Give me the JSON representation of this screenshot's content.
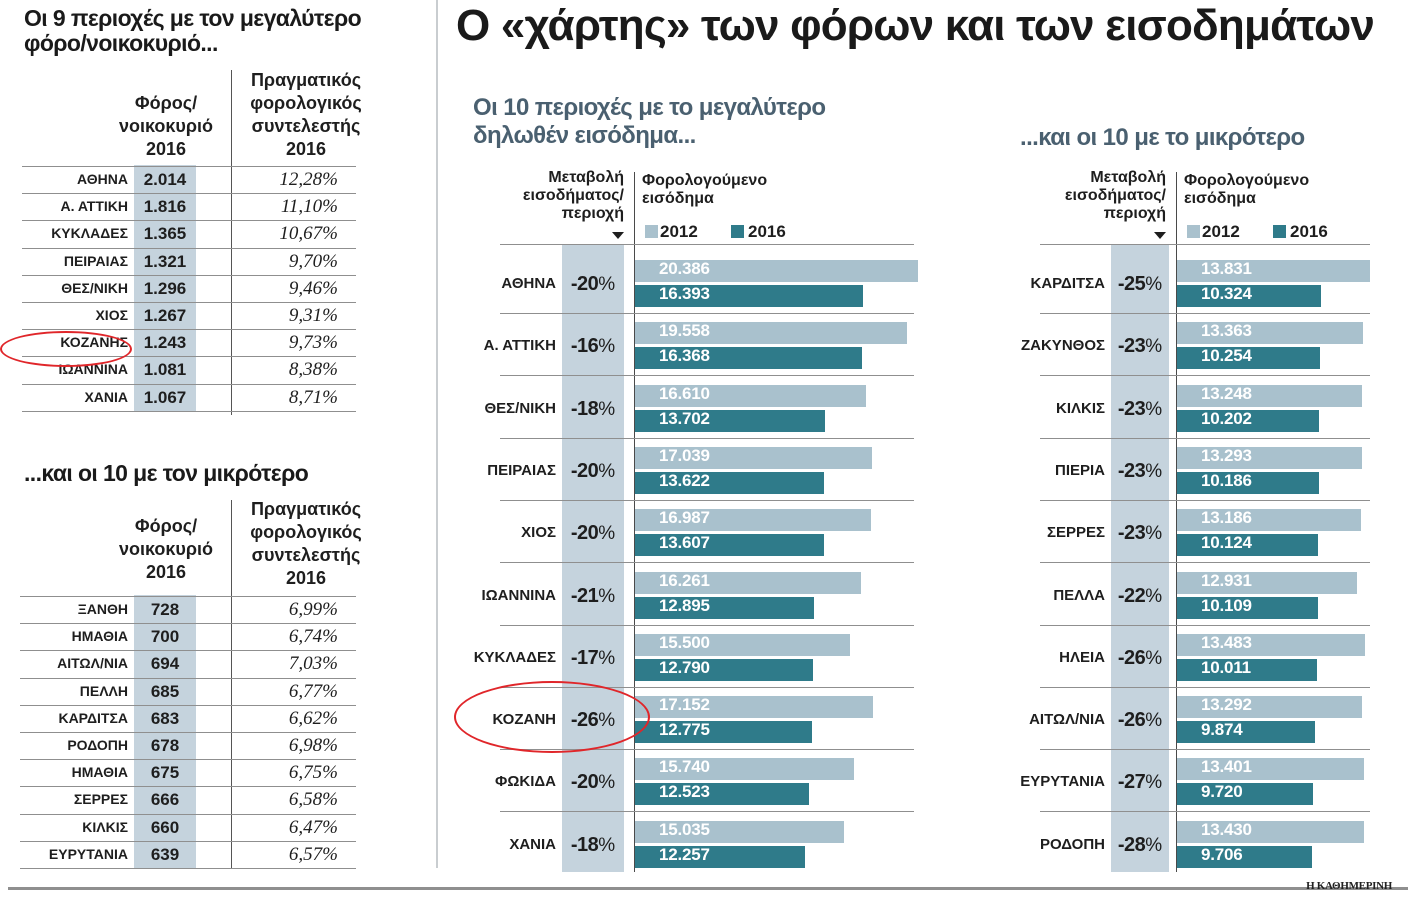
{
  "main_title": "Ο «χάρτης» των φόρων και των εισοδημάτων",
  "credit": "Η ΚΑΘΗΜΕΡΙΝΗ",
  "colors": {
    "bar_2012": "#a9c1cd",
    "bar_2016": "#2f7b8a",
    "shade": "#c5d3dd",
    "highlight": "#e0262a"
  },
  "left_top": {
    "title": "Οι 9 περιοχές με τον μεγαλύτερο φόρο/νοικοκυριό...",
    "title_line1": "Οι 9 περιοχές  με τον μεγαλύτερο",
    "title_line2": "φόρο/νοικοκυριό...",
    "col1_header": [
      "Φόρος/",
      "νοικοκυριό",
      "2016"
    ],
    "col2_header": [
      "Πραγματικός",
      "φορολογικός",
      "συντελεστής",
      "2016"
    ],
    "rows": [
      {
        "name": "ΑΘΗΝΑ",
        "tax": "2.014",
        "rate": "12,28%"
      },
      {
        "name": "Α. ΑΤΤΙΚΗ",
        "tax": "1.816",
        "rate": "11,10%"
      },
      {
        "name": "ΚΥΚΛΑΔΕΣ",
        "tax": "1.365",
        "rate": "10,67%"
      },
      {
        "name": "ΠΕΙΡΑΙΑΣ",
        "tax": "1.321",
        "rate": "9,70%"
      },
      {
        "name": "ΘΕΣ/ΝΙΚΗ",
        "tax": "1.296",
        "rate": "9,46%"
      },
      {
        "name": "ΧΙΟΣ",
        "tax": "1.267",
        "rate": "9,31%"
      },
      {
        "name": "ΚΟΖΑΝΗΣ",
        "tax": "1.243",
        "rate": "9,73%"
      },
      {
        "name": "ΙΩΑΝΝΙΝΑ",
        "tax": "1.081",
        "rate": "8,38%"
      },
      {
        "name": "ΧΑΝΙΑ",
        "tax": "1.067",
        "rate": "8,71%"
      }
    ]
  },
  "left_bottom": {
    "title": "...και οι 10 με τον μικρότερο",
    "col1_header": [
      "Φόρος/",
      "νοικοκυριό",
      "2016"
    ],
    "col2_header": [
      "Πραγματικός",
      "φορολογικός",
      "συντελεστής",
      "2016"
    ],
    "rows": [
      {
        "name": "ΞΑΝΘΗ",
        "tax": "728",
        "rate": "6,99%"
      },
      {
        "name": "ΗΜΑΘΙΑ",
        "tax": "700",
        "rate": "6,74%"
      },
      {
        "name": "ΑΙΤΩΛ/ΝΙΑ",
        "tax": "694",
        "rate": "7,03%"
      },
      {
        "name": "ΠΕΛΛΗ",
        "tax": "685",
        "rate": "6,77%"
      },
      {
        "name": "ΚΑΡΔΙΤΣΑ",
        "tax": "683",
        "rate": "6,62%"
      },
      {
        "name": "ΡΟΔΟΠΗ",
        "tax": "678",
        "rate": "6,98%"
      },
      {
        "name": "ΗΜΑΘΙΑ",
        "tax": "675",
        "rate": "6,75%"
      },
      {
        "name": "ΣΕΡΡΕΣ",
        "tax": "666",
        "rate": "6,58%"
      },
      {
        "name": "ΚΙΛΚΙΣ",
        "tax": "660",
        "rate": "6,47%"
      },
      {
        "name": "ΕΥΡΥΤΑΝΙΑ",
        "tax": "639",
        "rate": "6,57%"
      }
    ]
  },
  "chart_data": [
    {
      "type": "bar",
      "title": "Οι 10 περιοχές με το μεγαλύτερο δηλωθέν εισόδημα...",
      "title_line1": "Οι 10 περιοχές  με το μεγαλύτερο",
      "title_line2": "δηλωθέν εισόδημα...",
      "change_header": [
        "Μεταβολή",
        "εισοδήματος/",
        "περιοχή"
      ],
      "value_header": [
        "Φορολογούμενο",
        "εισόδημα"
      ],
      "legend": [
        "2012",
        "2016"
      ],
      "categories": [
        "ΑΘΗΝΑ",
        "Α. ΑΤΤΙΚΗ",
        "ΘΕΣ/ΝΙΚΗ",
        "ΠΕΙΡΑΙΑΣ",
        "ΧΙΟΣ",
        "ΙΩΑΝΝΙΝΑ",
        "ΚΥΚΛΑΔΕΣ",
        "ΚΟΖΑΝΗ",
        "ΦΩΚΙΔΑ",
        "ΧΑΝΙΑ"
      ],
      "change_num": [
        "-20",
        "-16",
        "-18",
        "-20",
        "-20",
        "-21",
        "-17",
        "-26",
        "-20",
        "-18"
      ],
      "series": [
        {
          "name": "2012",
          "values": [
            20386,
            19558,
            16610,
            17039,
            16987,
            16261,
            15500,
            17152,
            15740,
            15035
          ],
          "labels": [
            "20.386",
            "19.558",
            "16.610",
            "17.039",
            "16.987",
            "16.261",
            "15.500",
            "17.152",
            "15.740",
            "15.035"
          ]
        },
        {
          "name": "2016",
          "values": [
            16393,
            16368,
            13702,
            13622,
            13607,
            12895,
            12790,
            12775,
            12523,
            12257
          ],
          "labels": [
            "16.393",
            "16.368",
            "13.702",
            "13.622",
            "13.607",
            "12.895",
            "12.790",
            "12.775",
            "12.523",
            "12.257"
          ]
        }
      ],
      "xlim": [
        0,
        20386
      ]
    },
    {
      "type": "bar",
      "title": "...και οι 10 με το μικρότερο",
      "change_header": [
        "Μεταβολή",
        "εισοδήματος/",
        "περιοχή"
      ],
      "value_header": [
        "Φορολογούμενο",
        "εισόδημα"
      ],
      "legend": [
        "2012",
        "2016"
      ],
      "categories": [
        "ΚΑΡΔΙΤΣΑ",
        "ΖΑΚΥΝΘΟΣ",
        "ΚΙΛΚΙΣ",
        "ΠΙΕΡΙΑ",
        "ΣΕΡΡΕΣ",
        "ΠΕΛΛΑ",
        "ΗΛΕΙΑ",
        "ΑΙΤΩΛ/ΝΙΑ",
        "ΕΥΡΥΤΑΝΙΑ",
        "ΡΟΔΟΠΗ"
      ],
      "change_num": [
        "-25",
        "-23",
        "-23",
        "-23",
        "-23",
        "-22",
        "-26",
        "-26",
        "-27",
        "-28"
      ],
      "series": [
        {
          "name": "2012",
          "values": [
            13831,
            13363,
            13248,
            13293,
            13186,
            12931,
            13483,
            13292,
            13401,
            13430
          ],
          "labels": [
            "13.831",
            "13.363",
            "13.248",
            "13.293",
            "13.186",
            "12.931",
            "13.483",
            "13.292",
            "13.401",
            "13.430"
          ]
        },
        {
          "name": "2016",
          "values": [
            10324,
            10254,
            10202,
            10186,
            10124,
            10109,
            10011,
            9874,
            9720,
            9706
          ],
          "labels": [
            "10.324",
            "10.254",
            "10.202",
            "10.186",
            "10.124",
            "10.109",
            "10.011",
            "9.874",
            "9.720",
            "9.706"
          ]
        }
      ],
      "xlim": [
        0,
        13831
      ]
    }
  ]
}
